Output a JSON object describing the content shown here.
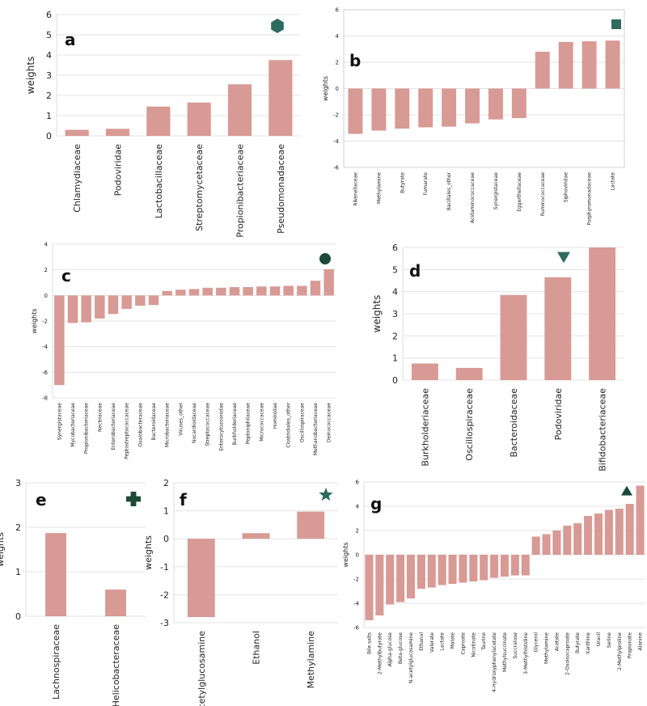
{
  "colors": {
    "bar": "#d89a95",
    "marker": "#2e6b5f",
    "marker_dark": "#1d4a38",
    "grid": "#e3e3e3",
    "axis": "#333333"
  },
  "chart_data": [
    {
      "id": "a",
      "type": "bar",
      "panel_label": "a",
      "ylabel": "weights",
      "ylim": [
        0,
        6
      ],
      "yticks": [
        0,
        1,
        2,
        3,
        4,
        5,
        6
      ],
      "marker": "hexagon",
      "categories": [
        "Chlamydiaceae",
        "Podoviridae",
        "Lactobacillaceae",
        "Streptomycetaceae",
        "Propionibacteriaceae",
        "Pseudomonadaceae"
      ],
      "values": [
        0.3,
        0.35,
        1.45,
        1.65,
        2.55,
        3.75
      ]
    },
    {
      "id": "b",
      "type": "bar",
      "panel_label": "b",
      "ylabel": "weights",
      "ylim": [
        -6,
        6
      ],
      "yticks": [
        -6,
        -4,
        -2,
        0,
        2,
        4,
        6
      ],
      "marker": "square",
      "categories": [
        "Rikenellaceae",
        "Methylamine",
        "Butyrate",
        "Fumarate",
        "Bacillales_other",
        "Acidaminococcaceae",
        "Synergistaceae",
        "Eggerthellaceae",
        "Ruminococcaceae",
        "Siphoviridae",
        "Porphyromonadaceae",
        "Lactate"
      ],
      "values": [
        -3.45,
        -3.2,
        -3.05,
        -2.95,
        -2.9,
        -2.65,
        -2.35,
        -2.25,
        2.8,
        3.55,
        3.6,
        3.65
      ]
    },
    {
      "id": "c",
      "type": "bar",
      "panel_label": "c",
      "ylabel": "weights",
      "ylim": [
        -8,
        4
      ],
      "yticks": [
        -8,
        -6,
        -4,
        -2,
        0,
        2,
        4
      ],
      "marker": "circle",
      "categories": [
        "Synergistaceae",
        "Mycobacteriaceae",
        "Propionibacteriaceae",
        "Nectriaceae",
        "Enterobacteriaceae",
        "Peptostreptococcaceae",
        "Oxalobacteraceae",
        "Bacteroidaceae",
        "Microbacteriaceae",
        "Viruses_other",
        "Nocardioidaceae",
        "Streptococcaceae",
        "Enterocytozoonidae",
        "Burkholderiaceae",
        "Peptoniphilaceae",
        "Micrococcaceae",
        "Hominidae",
        "Clostridiales_other",
        "Oscillospiraceae",
        "Methanobacteriaceae",
        "Deinococcaceae"
      ],
      "values": [
        -7.0,
        -2.15,
        -2.1,
        -1.8,
        -1.45,
        -1.05,
        -0.8,
        -0.75,
        0.35,
        0.45,
        0.5,
        0.6,
        0.6,
        0.65,
        0.65,
        0.7,
        0.7,
        0.75,
        0.75,
        1.15,
        2.05
      ]
    },
    {
      "id": "d",
      "type": "bar",
      "panel_label": "d",
      "ylabel": "weights",
      "ylim": [
        0,
        6
      ],
      "yticks": [
        0,
        1,
        2,
        3,
        4,
        5,
        6
      ],
      "marker": "triangle-down",
      "categories": [
        "Burkholderiaceae",
        "Oscillospiraceae",
        "Bacteroidaceae",
        "Podoviridae",
        "Bifidobacteriaceae"
      ],
      "values": [
        0.75,
        0.55,
        3.85,
        4.65,
        6.0
      ]
    },
    {
      "id": "e",
      "type": "bar",
      "panel_label": "e",
      "ylabel": "weights",
      "ylim": [
        0,
        3
      ],
      "yticks": [
        0,
        1,
        2,
        3
      ],
      "marker": "plus",
      "categories": [
        "Lachnospiraceae",
        "Helicobacteraceae"
      ],
      "values": [
        1.87,
        0.6
      ]
    },
    {
      "id": "f",
      "type": "bar",
      "panel_label": "f",
      "ylabel": "weights",
      "ylim": [
        -3,
        2
      ],
      "yticks": [
        -3,
        -2,
        -1,
        0,
        1,
        2
      ],
      "marker": "star",
      "categories": [
        "N-acetylglucosamine",
        "Ethanol",
        "Methylamine"
      ],
      "values": [
        -2.8,
        0.2,
        0.97
      ]
    },
    {
      "id": "g",
      "type": "bar",
      "panel_label": "g",
      "ylabel": "weights",
      "ylim": [
        -6,
        6
      ],
      "yticks": [
        -6,
        -4,
        -2,
        0,
        2,
        4,
        6
      ],
      "marker": "triangle-up",
      "categories": [
        "Bile salts",
        "2-Methylbutyrate",
        "Alpha-glucose",
        "Beta-glucose",
        "N-acetylglucosamine",
        "Ethanol",
        "Valerate",
        "Lactate",
        "Malate",
        "Caproate",
        "Nicotinate",
        "Taurine",
        "4-Hydroxyphenylacetate",
        "Methylsuccinate",
        "Succralose",
        "3-Methylhistidine",
        "Glycerol",
        "Methylamine",
        "Acetate",
        "2-Oxoisocaproate",
        "Butyrate",
        "Xanthine",
        "Uracil",
        "Serine",
        "2-Methylproline",
        "Propionate",
        "Alanine"
      ],
      "values": [
        -5.4,
        -5.0,
        -4.1,
        -3.9,
        -3.6,
        -2.8,
        -2.7,
        -2.5,
        -2.4,
        -2.3,
        -2.2,
        -2.1,
        -1.9,
        -1.8,
        -1.7,
        -1.7,
        1.5,
        1.7,
        2.0,
        2.4,
        2.6,
        3.2,
        3.4,
        3.7,
        3.8,
        4.2,
        5.7
      ]
    }
  ]
}
